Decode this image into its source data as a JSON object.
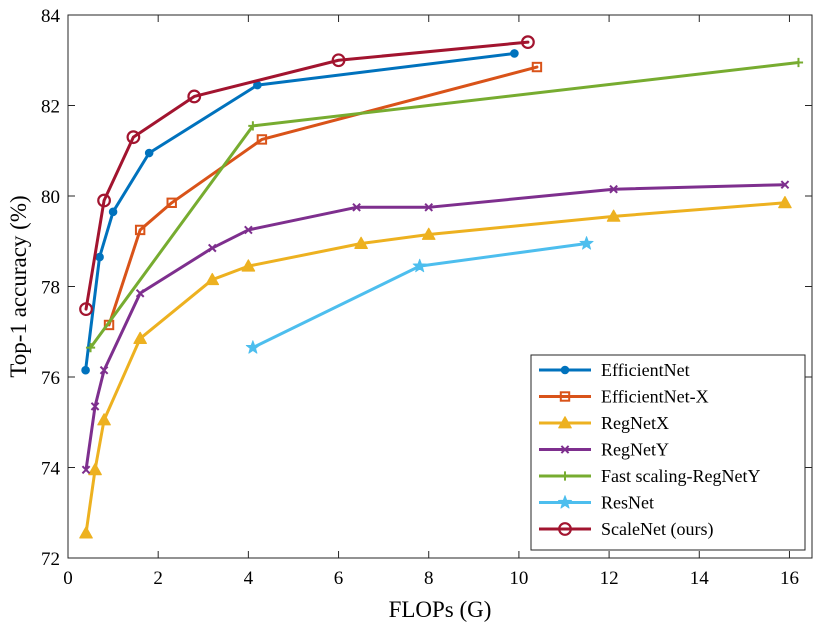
{
  "chart_data": {
    "type": "line",
    "title": "",
    "xlabel": "FLOPs (G)",
    "ylabel": "Top-1 accuracy (%)",
    "xlim": [
      0,
      16.5
    ],
    "ylim": [
      72,
      84
    ],
    "xticks": [
      0,
      2,
      4,
      6,
      8,
      10,
      12,
      14,
      16
    ],
    "yticks": [
      72,
      74,
      76,
      78,
      80,
      82,
      84
    ],
    "grid": false,
    "legend_position": "bottom-right",
    "series": [
      {
        "name": "EfficientNet",
        "color": "#0072BD",
        "marker": "dot",
        "points": [
          [
            0.39,
            76.15
          ],
          [
            0.7,
            78.65
          ],
          [
            1.0,
            79.65
          ],
          [
            1.8,
            80.95
          ],
          [
            4.2,
            82.45
          ],
          [
            9.9,
            83.15
          ]
        ]
      },
      {
        "name": "EfficientNet-X",
        "color": "#D95319",
        "marker": "square",
        "points": [
          [
            0.91,
            77.15
          ],
          [
            1.6,
            79.25
          ],
          [
            2.3,
            79.85
          ],
          [
            4.3,
            81.25
          ],
          [
            10.4,
            82.85
          ]
        ]
      },
      {
        "name": "RegNetX",
        "color": "#EDB120",
        "marker": "triangle",
        "points": [
          [
            0.4,
            72.55
          ],
          [
            0.6,
            73.95
          ],
          [
            0.8,
            75.05
          ],
          [
            1.6,
            76.85
          ],
          [
            3.2,
            78.15
          ],
          [
            4.0,
            78.45
          ],
          [
            6.5,
            78.95
          ],
          [
            8.0,
            79.15
          ],
          [
            12.1,
            79.55
          ],
          [
            15.9,
            79.85
          ]
        ]
      },
      {
        "name": "RegNetY",
        "color": "#7E2F8E",
        "marker": "x",
        "points": [
          [
            0.4,
            73.95
          ],
          [
            0.6,
            75.35
          ],
          [
            0.8,
            76.15
          ],
          [
            1.6,
            77.85
          ],
          [
            3.2,
            78.85
          ],
          [
            4.0,
            79.25
          ],
          [
            6.4,
            79.75
          ],
          [
            8.0,
            79.75
          ],
          [
            12.1,
            80.15
          ],
          [
            15.9,
            80.25
          ]
        ]
      },
      {
        "name": "Fast scaling-RegNetY",
        "color": "#77AC30",
        "marker": "plus",
        "points": [
          [
            0.5,
            76.65
          ],
          [
            4.1,
            81.55
          ],
          [
            16.2,
            82.95
          ]
        ]
      },
      {
        "name": "ResNet",
        "color": "#4DBEEE",
        "marker": "star",
        "points": [
          [
            4.1,
            76.65
          ],
          [
            7.8,
            78.45
          ],
          [
            11.5,
            78.95
          ]
        ]
      },
      {
        "name": "ScaleNet (ours)",
        "color": "#A2142F",
        "marker": "circle",
        "points": [
          [
            0.4,
            77.5
          ],
          [
            0.8,
            79.9
          ],
          [
            1.45,
            81.3
          ],
          [
            2.8,
            82.2
          ],
          [
            6.0,
            83.0
          ],
          [
            10.2,
            83.4
          ]
        ]
      }
    ]
  }
}
